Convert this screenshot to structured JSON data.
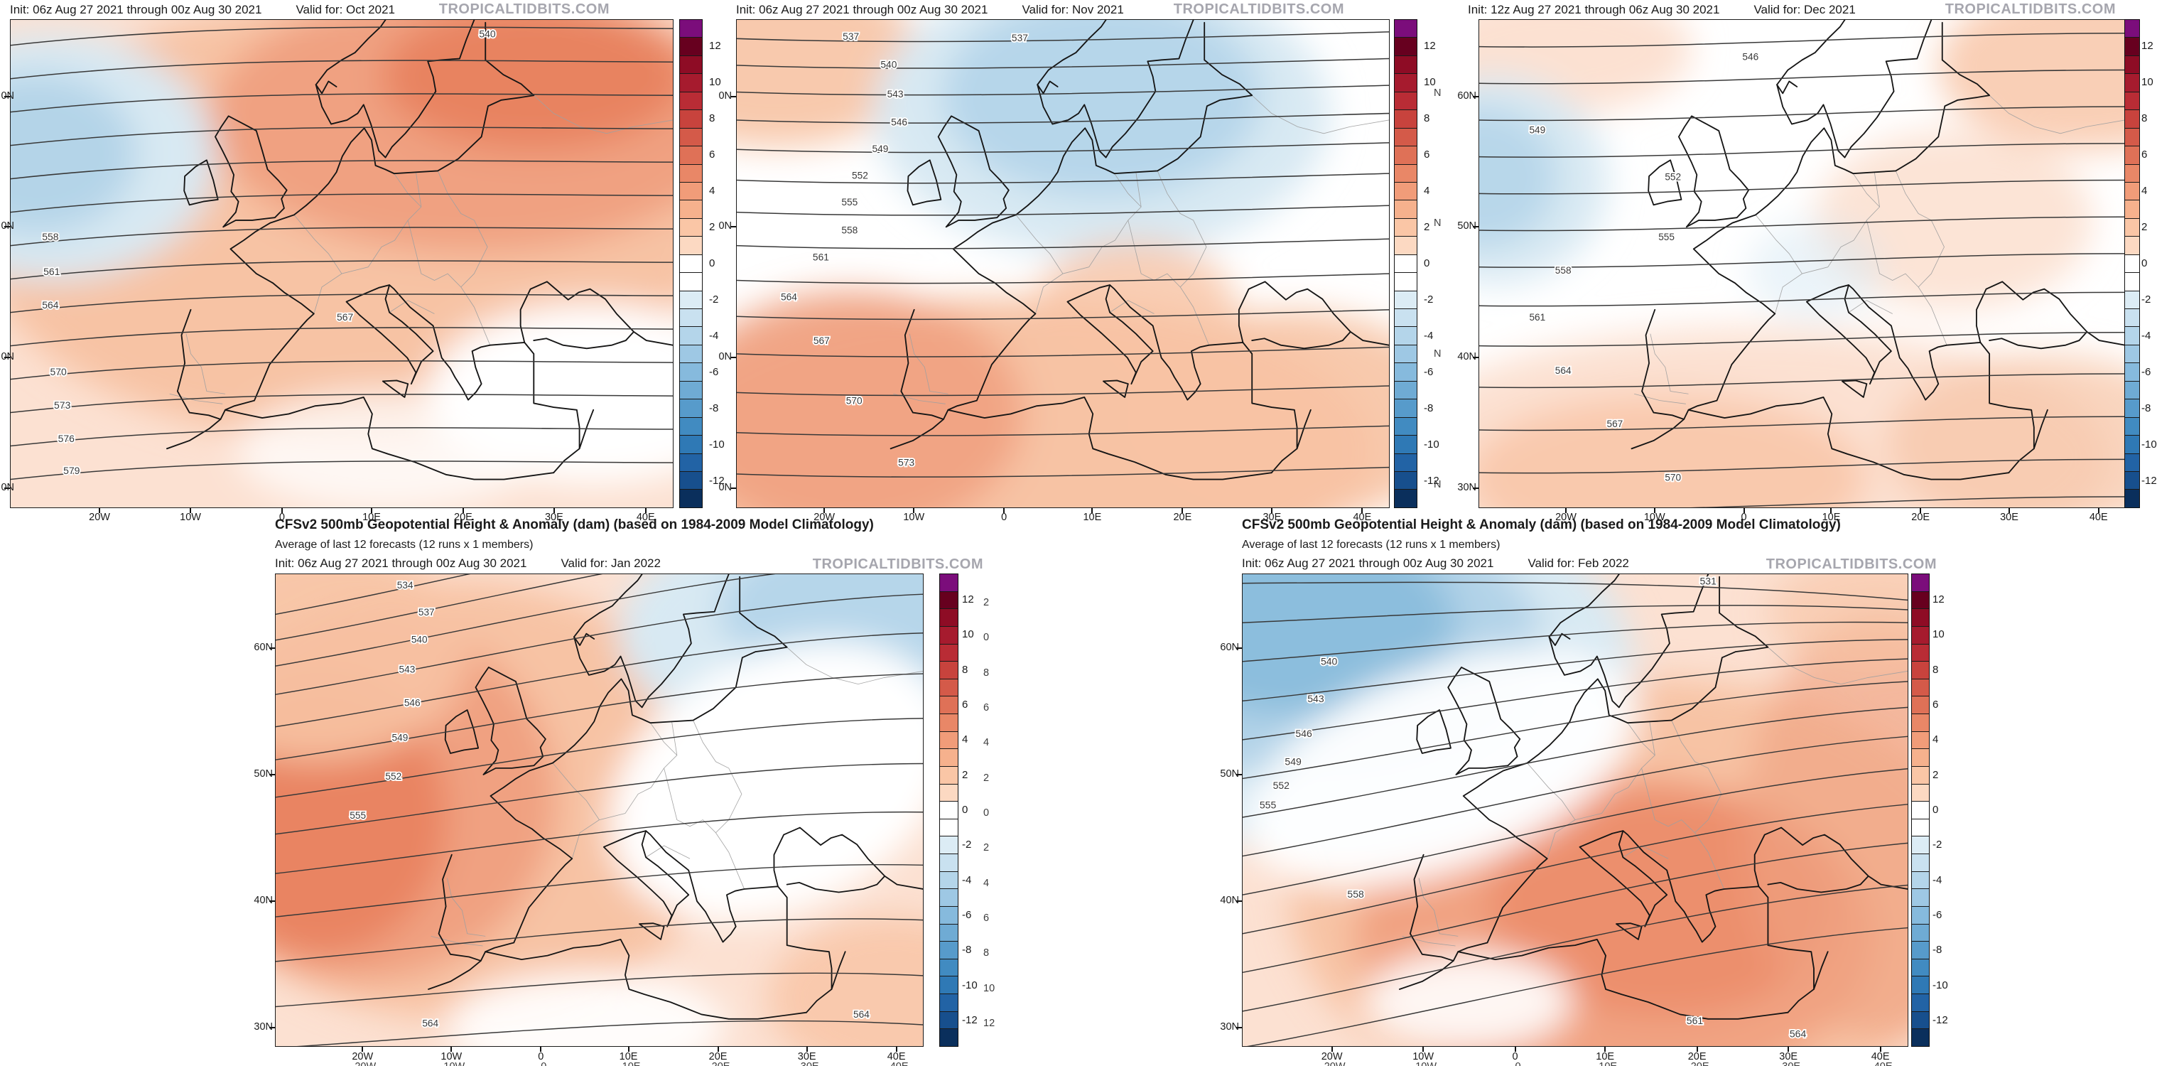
{
  "page": {
    "background": "#ffffff",
    "watermark_color": "#a6a6ae"
  },
  "colorbar": {
    "tick_labels": [
      "12",
      "10",
      "8",
      "6",
      "4",
      "2",
      "0",
      "-2",
      "-4",
      "-6",
      "-8",
      "-10",
      "-12"
    ],
    "segment_colors": [
      "#7b0d7b",
      "#67001f",
      "#8e0c25",
      "#a61b2e",
      "#b92c35",
      "#c8433d",
      "#d45a49",
      "#df7157",
      "#e98767",
      "#f19c79",
      "#f6b18d",
      "#fac6a6",
      "#fcd9c2",
      "#ffffff",
      "#ffffff",
      "#dcecf5",
      "#c9e1f0",
      "#b4d5ea",
      "#9ec8e4",
      "#86badd",
      "#6fabd4",
      "#579bcb",
      "#418bc1",
      "#2f79b5",
      "#2263a5",
      "#174f8d",
      "#0a2f5c"
    ]
  },
  "anomaly_palette": {
    "plus1": "#fce1d2",
    "plus2": "#f7c3a4",
    "plus3": "#f0a181",
    "plus4": "#e77f5d",
    "minus1": "#d8e9f3",
    "minus2": "#b0d2e7",
    "minus3": "#87bbdc",
    "white": "#ffffff"
  },
  "maps": [
    {
      "id": "oct-2021",
      "init_text": "Init: 06z Aug 27 2021 through 00z Aug 30 2021",
      "valid_text": "Valid for: Oct 2021",
      "watermark": "TROPICALTIDBITS.COM",
      "lat_labels": [
        "0N",
        "0N",
        "0N",
        "0N"
      ],
      "lon_labels": [
        "20W",
        "10W",
        "0",
        "10E",
        "20E",
        "30E",
        "40E"
      ],
      "contour_labels": [
        "540",
        "558",
        "561",
        "564",
        "567",
        "570",
        "573",
        "576",
        "579"
      ]
    },
    {
      "id": "nov-2021",
      "init_text": "Init: 06z Aug 27 2021 through 00z Aug 30 2021",
      "valid_text": "Valid for: Nov 2021",
      "watermark": "TROPICALTIDBITS.COM",
      "lat_labels": [
        "0N",
        "0N",
        "0N",
        "0N"
      ],
      "lon_labels": [
        "20W",
        "10W",
        "0",
        "10E",
        "20E",
        "30E",
        "40E"
      ],
      "contour_labels": [
        "537",
        "537",
        "540",
        "543",
        "546",
        "549",
        "552",
        "555",
        "558",
        "561",
        "564",
        "567",
        "570",
        "573"
      ]
    },
    {
      "id": "dec-2021",
      "init_text": "Init: 12z Aug 27 2021 through 06z Aug 30 2021",
      "valid_text": "Valid for: Dec 2021",
      "watermark": "TROPICALTIDBITS.COM",
      "lat_labels": [
        "60N",
        "50N",
        "40N",
        "30N"
      ],
      "stray_lat_fragments": [
        "N",
        "N",
        "N",
        "N"
      ],
      "lon_labels": [
        "20W",
        "10W",
        "0",
        "10E",
        "20E",
        "30E",
        "40E"
      ],
      "contour_labels": [
        "546",
        "549",
        "552",
        "555",
        "558",
        "561",
        "564",
        "567",
        "570"
      ]
    },
    {
      "id": "jan-2022",
      "title": "CFSv2 500mb Geopotential Height & Anomaly (dam) (based on 1984-2009 Model Climatology)",
      "subtitle": "Average of last 12 forecasts (12 runs x 1 members)",
      "init_text": "Init: 06z Aug 27 2021 through 00z Aug 30 2021",
      "valid_text": "Valid for: Jan 2022",
      "watermark": "TROPICALTIDBITS.COM",
      "lat_labels": [
        "60N",
        "50N",
        "40N",
        "30N"
      ],
      "lon_labels": [
        "20W",
        "10W",
        "0",
        "10E",
        "20E",
        "30E",
        "40E"
      ],
      "ghost_lon_labels": [
        "20W",
        "10W",
        "0",
        "10E",
        "20E",
        "30E",
        "40E"
      ],
      "ghost_tick_labels": [
        "2",
        "0",
        "8",
        "6",
        "4",
        "2",
        "0",
        "2",
        "4",
        "6",
        "8",
        "10",
        "12"
      ],
      "contour_labels": [
        "534",
        "537",
        "540",
        "543",
        "546",
        "549",
        "552",
        "555",
        "564",
        "564"
      ]
    },
    {
      "id": "feb-2022",
      "title": "CFSv2 500mb Geopotential Height & Anomaly (dam) (based on 1984-2009 Model Climatology)",
      "subtitle": "Average of last 12 forecasts (12 runs x 1 members)",
      "init_text": "Init: 06z Aug 27 2021 through 00z Aug 30 2021",
      "valid_text": "Valid for: Feb 2022",
      "watermark": "TROPICALTIDBITS.COM",
      "lat_labels": [
        "60N",
        "50N",
        "40N",
        "30N"
      ],
      "lon_labels": [
        "20W",
        "10W",
        "0",
        "10E",
        "20E",
        "30E",
        "40E"
      ],
      "ghost_lon_labels": [
        "20W",
        "10W",
        "0",
        "10E",
        "20E",
        "30E",
        "40E"
      ],
      "contour_labels": [
        "531",
        "540",
        "543",
        "546",
        "549",
        "552",
        "555",
        "558",
        "561",
        "564"
      ]
    }
  ]
}
